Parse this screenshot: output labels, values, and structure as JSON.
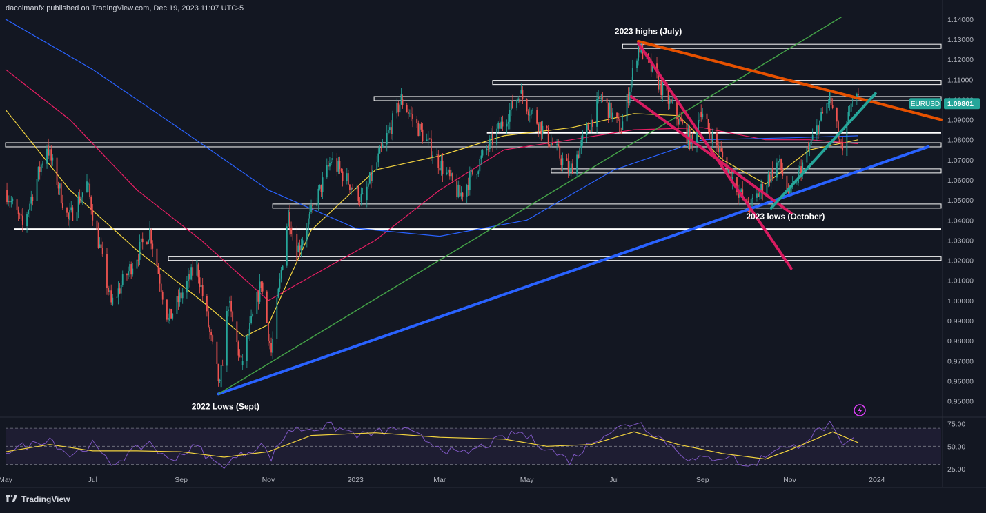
{
  "header": {
    "publisher": "dacolmanfx published on TradingView.com, Dec 19, 2023 11:07 UTC-5"
  },
  "footer": {
    "brand": "TradingView"
  },
  "chart_data": {
    "type": "candlestick",
    "symbol": "EURUSD",
    "last_price": "1.09801",
    "ylim": [
      0.943,
      1.142
    ],
    "y_ticks": [
      "1.14000",
      "1.13000",
      "1.12000",
      "1.11000",
      "1.10000",
      "1.09000",
      "1.08000",
      "1.07000",
      "1.06000",
      "1.05000",
      "1.04000",
      "1.03000",
      "1.02000",
      "1.01000",
      "1.00000",
      "0.99000",
      "0.98000",
      "0.97000",
      "0.96000",
      "0.95000"
    ],
    "x_range": [
      "2022-05-01",
      "2024-02-15"
    ],
    "x_ticks": [
      {
        "label": "May",
        "date": "2022-05-01"
      },
      {
        "label": "Jul",
        "date": "2022-07-01"
      },
      {
        "label": "Sep",
        "date": "2022-09-01"
      },
      {
        "label": "Nov",
        "date": "2022-11-01"
      },
      {
        "label": "2023",
        "date": "2023-01-01"
      },
      {
        "label": "Mar",
        "date": "2023-03-01"
      },
      {
        "label": "May",
        "date": "2023-05-01"
      },
      {
        "label": "Jul",
        "date": "2023-07-01"
      },
      {
        "label": "Sep",
        "date": "2023-09-01"
      },
      {
        "label": "Nov",
        "date": "2023-11-01"
      },
      {
        "label": "2024",
        "date": "2024-01-01"
      }
    ],
    "price_path": [
      [
        "2022-05-01",
        1.055
      ],
      [
        "2022-05-13",
        1.037
      ],
      [
        "2022-05-30",
        1.077
      ],
      [
        "2022-06-14",
        1.04
      ],
      [
        "2022-06-27",
        1.058
      ],
      [
        "2022-07-14",
        0.998
      ],
      [
        "2022-08-10",
        1.035
      ],
      [
        "2022-08-23",
        0.99
      ],
      [
        "2022-09-12",
        1.018
      ],
      [
        "2022-09-28",
        0.957
      ],
      [
        "2022-10-04",
        0.999
      ],
      [
        "2022-10-13",
        0.968
      ],
      [
        "2022-10-27",
        1.009
      ],
      [
        "2022-11-03",
        0.974
      ],
      [
        "2022-11-15",
        1.044
      ],
      [
        "2022-11-21",
        1.024
      ],
      [
        "2022-12-15",
        1.07
      ],
      [
        "2023-01-06",
        1.05
      ],
      [
        "2023-02-02",
        1.1
      ],
      [
        "2023-03-15",
        1.052
      ],
      [
        "2023-04-26",
        1.103
      ],
      [
        "2023-05-31",
        1.064
      ],
      [
        "2023-06-22",
        1.101
      ],
      [
        "2023-07-06",
        1.085
      ],
      [
        "2023-07-18",
        1.127
      ],
      [
        "2023-08-25",
        1.077
      ],
      [
        "2023-08-30",
        1.094
      ],
      [
        "2023-10-03",
        1.045
      ],
      [
        "2023-10-24",
        1.069
      ],
      [
        "2023-11-01",
        1.052
      ],
      [
        "2023-11-29",
        1.101
      ],
      [
        "2023-12-08",
        1.072
      ],
      [
        "2023-12-14",
        1.1
      ],
      [
        "2023-12-19",
        1.098
      ]
    ],
    "indicators": [
      {
        "name": "MA-short",
        "color": "#f2d33f",
        "values": [
          [
            "2022-05-01",
            1.095
          ],
          [
            "2022-06-15",
            1.055
          ],
          [
            "2022-08-01",
            1.025
          ],
          [
            "2022-09-15",
            1.0
          ],
          [
            "2022-10-15",
            0.982
          ],
          [
            "2022-11-01",
            0.988
          ],
          [
            "2022-12-01",
            1.035
          ],
          [
            "2023-01-15",
            1.065
          ],
          [
            "2023-03-01",
            1.072
          ],
          [
            "2023-04-15",
            1.082
          ],
          [
            "2023-06-01",
            1.086
          ],
          [
            "2023-07-15",
            1.093
          ],
          [
            "2023-08-15",
            1.092
          ],
          [
            "2023-09-15",
            1.07
          ],
          [
            "2023-10-15",
            1.058
          ],
          [
            "2023-11-15",
            1.075
          ],
          [
            "2023-12-19",
            1.08
          ]
        ]
      },
      {
        "name": "MA-mid",
        "color": "#e91e63",
        "values": [
          [
            "2022-05-01",
            1.115
          ],
          [
            "2022-06-15",
            1.09
          ],
          [
            "2022-08-01",
            1.055
          ],
          [
            "2022-09-15",
            1.03
          ],
          [
            "2022-11-01",
            1.0
          ],
          [
            "2022-12-01",
            1.012
          ],
          [
            "2023-01-15",
            1.03
          ],
          [
            "2023-03-01",
            1.055
          ],
          [
            "2023-04-15",
            1.075
          ],
          [
            "2023-06-01",
            1.08
          ],
          [
            "2023-07-15",
            1.085
          ],
          [
            "2023-09-01",
            1.086
          ],
          [
            "2023-10-15",
            1.08
          ],
          [
            "2023-11-15",
            1.08
          ],
          [
            "2023-12-19",
            1.078
          ]
        ]
      },
      {
        "name": "MA-long",
        "color": "#2962ff",
        "values": [
          [
            "2022-05-01",
            1.14
          ],
          [
            "2022-07-01",
            1.115
          ],
          [
            "2022-09-01",
            1.085
          ],
          [
            "2022-11-01",
            1.055
          ],
          [
            "2023-01-01",
            1.036
          ],
          [
            "2023-03-01",
            1.032
          ],
          [
            "2023-05-01",
            1.04
          ],
          [
            "2023-07-01",
            1.065
          ],
          [
            "2023-09-01",
            1.08
          ],
          [
            "2023-11-01",
            1.081
          ],
          [
            "2023-12-19",
            1.082
          ]
        ]
      }
    ],
    "horizontal_levels": [
      {
        "from": "2023-07-07",
        "to": "2024-02-15",
        "price": 1.1265,
        "color": "#ffffff",
        "style": "band"
      },
      {
        "from": "2023-04-07",
        "to": "2024-02-15",
        "price": 1.1085,
        "color": "#ffffff",
        "style": "band"
      },
      {
        "from": "2023-01-14",
        "to": "2024-02-15",
        "price": 1.1005,
        "color": "#ffffff",
        "style": "band"
      },
      {
        "from": "2023-04-03",
        "to": "2024-02-15",
        "price": 1.0835,
        "color": "#ffffff",
        "style": "solid"
      },
      {
        "from": "2022-05-01",
        "to": "2024-02-15",
        "price": 1.0775,
        "color": "#ffffff",
        "style": "band"
      },
      {
        "from": "2023-05-18",
        "to": "2024-02-15",
        "price": 1.0645,
        "color": "#ffffff",
        "style": "band"
      },
      {
        "from": "2022-11-04",
        "to": "2024-02-15",
        "price": 1.047,
        "color": "#ffffff",
        "style": "band"
      },
      {
        "from": "2022-05-07",
        "to": "2024-02-15",
        "price": 1.0355,
        "color": "#ffffff",
        "style": "solid"
      },
      {
        "from": "2022-08-23",
        "to": "2024-02-15",
        "price": 1.021,
        "color": "#ffffff",
        "style": "band"
      }
    ],
    "trendlines": [
      {
        "from": [
          "2022-09-27",
          0.9535
        ],
        "to": [
          "2024-02-06",
          1.0765
        ],
        "color": "#2962ff",
        "width": 4
      },
      {
        "from": [
          "2022-09-27",
          0.9535
        ],
        "to": [
          "2023-12-07",
          1.141
        ],
        "color": "#43a047",
        "width": 1.5
      },
      {
        "from": [
          "2023-07-18",
          1.129
        ],
        "to": [
          "2024-02-15",
          1.09
        ],
        "color": "#e65100",
        "width": 4
      },
      {
        "from": [
          "2023-07-18",
          1.128
        ],
        "to": [
          "2023-11-02",
          1.016
        ],
        "color": "#d81b60",
        "width": 4
      },
      {
        "from": [
          "2023-07-13",
          1.1015
        ],
        "to": [
          "2023-11-02",
          1.0435
        ],
        "color": "#d81b60",
        "width": 4
      },
      {
        "from": [
          "2023-10-19",
          1.046
        ],
        "to": [
          "2023-12-31",
          1.103
        ],
        "color": "#26a69a",
        "width": 4
      }
    ],
    "annotations": [
      {
        "text": "2023 highs (July)",
        "date": "2023-07-25",
        "price": 1.1325
      },
      {
        "text": "2023 lows (October)",
        "date": "2023-10-29",
        "price": 1.0405
      },
      {
        "text": "2022 Lows (Sept)",
        "date": "2022-10-02",
        "price": 0.946
      }
    ],
    "rsi": {
      "ylim": [
        22,
        80
      ],
      "ticks": [
        "75.00",
        "50.00",
        "25.00"
      ],
      "band": [
        30,
        70
      ],
      "values": [
        [
          "2022-05-01",
          45
        ],
        [
          "2022-05-20",
          52
        ],
        [
          "2022-06-01",
          60
        ],
        [
          "2022-06-15",
          40
        ],
        [
          "2022-07-01",
          52
        ],
        [
          "2022-07-14",
          30
        ],
        [
          "2022-08-10",
          55
        ],
        [
          "2022-08-23",
          34
        ],
        [
          "2022-09-12",
          50
        ],
        [
          "2022-09-28",
          28
        ],
        [
          "2022-10-13",
          40
        ],
        [
          "2022-10-27",
          52
        ],
        [
          "2022-11-03",
          38
        ],
        [
          "2022-11-15",
          68
        ],
        [
          "2022-12-15",
          72
        ],
        [
          "2023-01-06",
          62
        ],
        [
          "2023-02-02",
          70
        ],
        [
          "2023-03-15",
          40
        ],
        [
          "2023-04-26",
          66
        ],
        [
          "2023-05-31",
          34
        ],
        [
          "2023-06-22",
          62
        ],
        [
          "2023-07-18",
          78
        ],
        [
          "2023-08-25",
          34
        ],
        [
          "2023-09-20",
          40
        ],
        [
          "2023-10-03",
          26
        ],
        [
          "2023-10-24",
          50
        ],
        [
          "2023-11-01",
          46
        ],
        [
          "2023-11-29",
          74
        ],
        [
          "2023-12-08",
          48
        ],
        [
          "2023-12-19",
          62
        ]
      ],
      "signal": [
        [
          "2022-05-01",
          44
        ],
        [
          "2022-06-01",
          52
        ],
        [
          "2022-07-01",
          45
        ],
        [
          "2022-08-01",
          45
        ],
        [
          "2022-09-01",
          44
        ],
        [
          "2022-10-01",
          38
        ],
        [
          "2022-11-01",
          44
        ],
        [
          "2022-12-01",
          62
        ],
        [
          "2023-01-15",
          65
        ],
        [
          "2023-03-01",
          60
        ],
        [
          "2023-04-15",
          58
        ],
        [
          "2023-05-15",
          50
        ],
        [
          "2023-06-15",
          52
        ],
        [
          "2023-07-15",
          66
        ],
        [
          "2023-08-15",
          52
        ],
        [
          "2023-09-15",
          42
        ],
        [
          "2023-10-15",
          36
        ],
        [
          "2023-11-01",
          46
        ],
        [
          "2023-12-01",
          66
        ],
        [
          "2023-12-19",
          54
        ]
      ]
    }
  }
}
